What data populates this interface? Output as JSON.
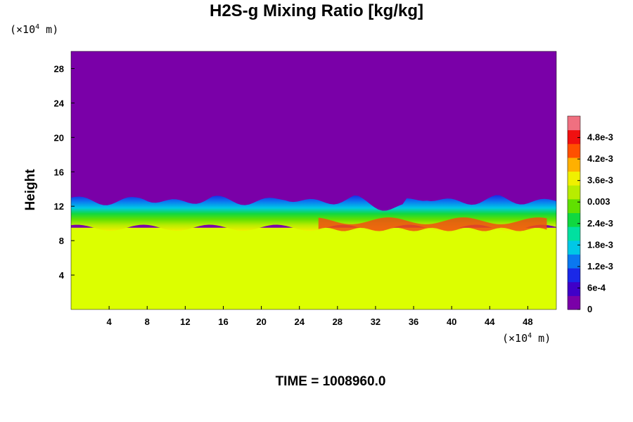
{
  "chart_data": {
    "type": "heatmap",
    "title": "H2S-g Mixing Ratio [kg/kg]",
    "ylabel": "Height",
    "x_units_prefix": "(×10",
    "x_units_exp": "4",
    "x_units_suffix": " m)",
    "y_units_prefix": "(×10",
    "y_units_exp": "4",
    "y_units_suffix": " m)",
    "xlim": [
      0,
      51
    ],
    "ylim": [
      0,
      30
    ],
    "x_ticks": [
      4,
      8,
      12,
      16,
      20,
      24,
      28,
      32,
      36,
      40,
      44,
      48
    ],
    "y_ticks": [
      4,
      8,
      12,
      16,
      20,
      24,
      28
    ],
    "colorbar": {
      "range": [
        0,
        0.0054
      ],
      "tick_labels": [
        {
          "value": 0,
          "label": "0"
        },
        {
          "value": 0.0006,
          "label": "6e-4"
        },
        {
          "value": 0.0012,
          "label": "1.2e-3"
        },
        {
          "value": 0.0018,
          "label": "1.8e-3"
        },
        {
          "value": 0.0024,
          "label": "2.4e-3"
        },
        {
          "value": 0.003,
          "label": "0.003"
        },
        {
          "value": 0.0036,
          "label": "3.6e-3"
        },
        {
          "value": 0.0042,
          "label": "4.2e-3"
        },
        {
          "value": 0.0048,
          "label": "4.8e-3"
        }
      ],
      "colors": [
        "#7a00a8",
        "#3f00c8",
        "#1a28e8",
        "#0a78f0",
        "#00c8e6",
        "#00e0a0",
        "#10d840",
        "#60e000",
        "#b8ec00",
        "#f0f000",
        "#ffb000",
        "#ff5000",
        "#f01010",
        "#f07080"
      ]
    },
    "regions": [
      {
        "name": "upper",
        "y_range": [
          13,
          30
        ],
        "mixing_ratio": 0,
        "color": "#7a00a8"
      },
      {
        "name": "turbulent-layer",
        "y_range": [
          9.5,
          13
        ],
        "mixing_ratio_range": [
          0.0006,
          0.0048
        ]
      },
      {
        "name": "lower",
        "y_range": [
          0,
          9.5
        ],
        "mixing_ratio": 0.0039,
        "color": "#dcff00"
      }
    ]
  },
  "footer": {
    "time_label": "TIME = 1008960.0"
  }
}
